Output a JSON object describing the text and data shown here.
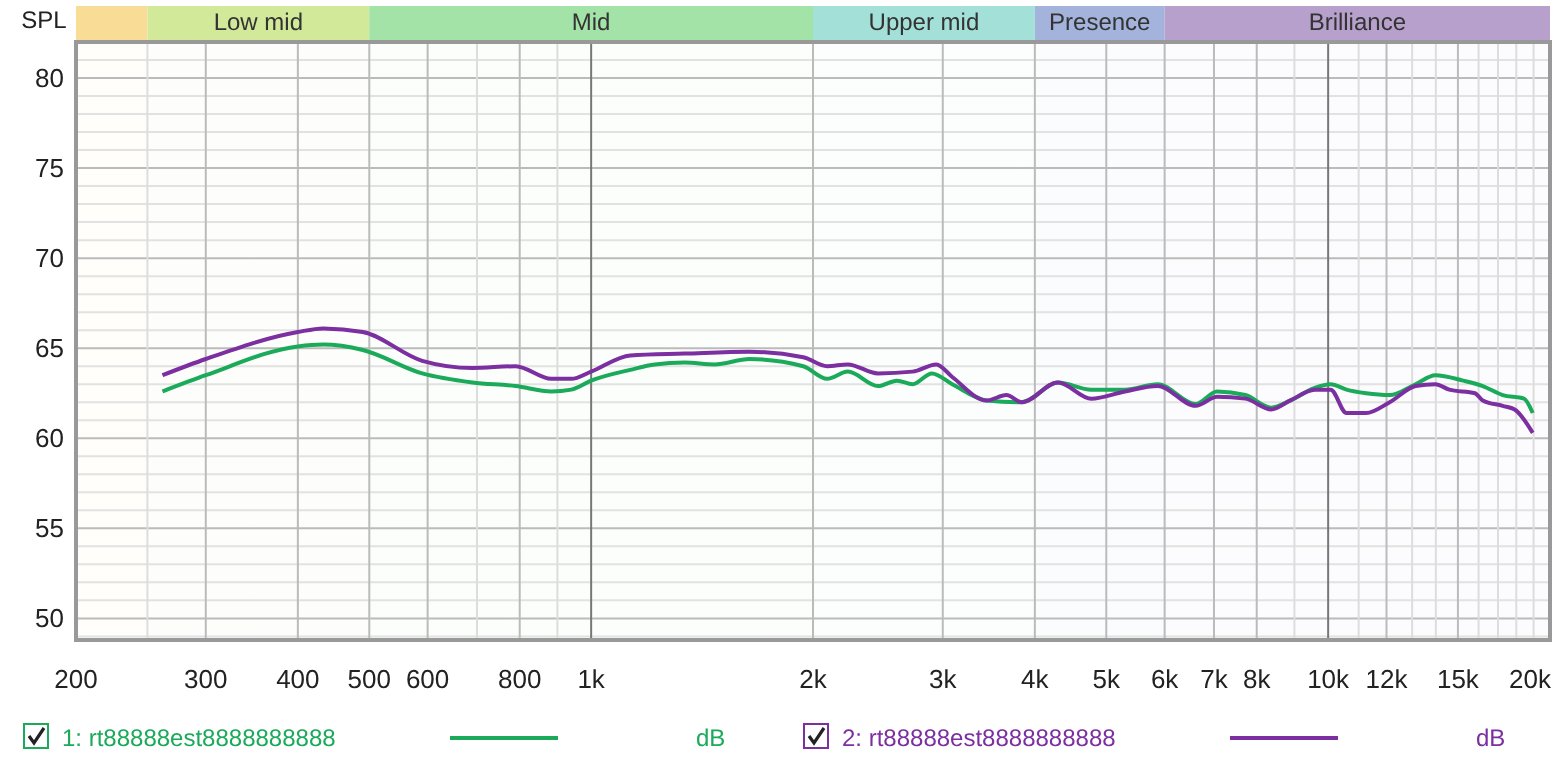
{
  "chart_data": {
    "type": "line",
    "ylabel": "SPL",
    "log": "x",
    "grid": true,
    "legend": "bottom",
    "line_style": "solid",
    "marker": "none",
    "xlim": [
      200,
      20000
    ],
    "ylim": [
      48.8,
      82
    ],
    "xticks": [
      200,
      {
        "value": 250,
        "label": null
      },
      300,
      400,
      500,
      600,
      {
        "value": 700,
        "label": null
      },
      800,
      {
        "value": 900,
        "label": null
      },
      {
        "value": 1000,
        "label": "1k"
      },
      {
        "value": 2000,
        "label": "2k"
      },
      {
        "value": 3000,
        "label": "3k"
      },
      {
        "value": 4000,
        "label": "4k"
      },
      {
        "value": 5000,
        "label": "5k"
      },
      {
        "value": 6000,
        "label": "6k"
      },
      {
        "value": 7000,
        "label": "7k"
      },
      {
        "value": 8000,
        "label": "8k"
      },
      {
        "value": 9000,
        "label": null
      },
      {
        "value": 10000,
        "label": "10k"
      },
      {
        "value": 11000,
        "label": null
      },
      {
        "value": 12000,
        "label": "12k"
      },
      {
        "value": 13000,
        "label": null
      },
      {
        "value": 14000,
        "label": null
      },
      {
        "value": 15000,
        "label": "15k"
      },
      {
        "value": 16000,
        "label": null
      },
      {
        "value": 17000,
        "label": null
      },
      {
        "value": 18000,
        "label": null
      },
      {
        "value": 19000,
        "label": null
      },
      {
        "value": 20000,
        "label": "20k"
      }
    ],
    "yticks": [
      {
        "value": 49,
        "label": null
      },
      50,
      {
        "value": 51,
        "label": null
      },
      {
        "value": 52,
        "label": null
      },
      {
        "value": 53,
        "label": null
      },
      {
        "value": 54,
        "label": null
      },
      55,
      {
        "value": 56,
        "label": null
      },
      {
        "value": 57,
        "label": null
      },
      {
        "value": 58,
        "label": null
      },
      {
        "value": 59,
        "label": null
      },
      60,
      {
        "value": 61,
        "label": null
      },
      {
        "value": 62,
        "label": null
      },
      {
        "value": 63,
        "label": null
      },
      {
        "value": 64,
        "label": null
      },
      65,
      {
        "value": 66,
        "label": null
      },
      {
        "value": 67,
        "label": null
      },
      {
        "value": 68,
        "label": null
      },
      {
        "value": 69,
        "label": null
      },
      70,
      {
        "value": 71,
        "label": null
      },
      {
        "value": 72,
        "label": null
      },
      {
        "value": 73,
        "label": null
      },
      {
        "value": 74,
        "label": null
      },
      75,
      {
        "value": 76,
        "label": null
      },
      {
        "value": 77,
        "label": null
      },
      {
        "value": 78,
        "label": null
      },
      {
        "value": 79,
        "label": null
      },
      80,
      {
        "value": 81,
        "label": null
      }
    ],
    "bands": [
      {
        "axis": "x",
        "from": 200,
        "to": 250,
        "label": null,
        "color": "#f9dc96"
      },
      {
        "axis": "x",
        "from": 250,
        "to": 500,
        "label": "Low mid",
        "color": "#d3e99a"
      },
      {
        "axis": "x",
        "from": 500,
        "to": 2000,
        "label": "Mid",
        "color": "#a3e3a8"
      },
      {
        "axis": "x",
        "from": 2000,
        "to": 4000,
        "label": "Upper mid",
        "color": "#a3e1d8"
      },
      {
        "axis": "x",
        "from": 4000,
        "to": 6000,
        "label": "Presence",
        "color": "#a3b3db"
      },
      {
        "axis": "x",
        "from": 6000,
        "to": 20000,
        "label": "Brilliance",
        "color": "#b7a0cc"
      }
    ],
    "annotations": [
      "dB",
      "dB"
    ],
    "series": [
      {
        "name": "1: rt88888est8888888888",
        "color": "#1aaa5a",
        "x": [
          262,
          300,
          400,
          433,
          490,
          590,
          690,
          790,
          883,
          940,
          1000,
          1130,
          1220,
          1340,
          1470,
          1640,
          1940,
          2090,
          2230,
          2450,
          2600,
          2730,
          2900,
          3090,
          3440,
          3840,
          4300,
          4770,
          5300,
          5870,
          6610,
          7070,
          7720,
          8370,
          8890,
          9590,
          10080,
          10590,
          11260,
          12120,
          13140,
          13980,
          15250,
          16210,
          17250,
          18440,
          18950
        ],
        "values": [
          62.6,
          63.5,
          65.1,
          65.2,
          64.9,
          63.6,
          63.1,
          62.9,
          62.6,
          62.7,
          63.2,
          63.8,
          64.1,
          64.2,
          64.1,
          64.4,
          64.0,
          63.3,
          63.7,
          62.9,
          63.2,
          63.0,
          63.6,
          63.0,
          62.1,
          62.0,
          63.1,
          62.7,
          62.7,
          63.0,
          61.9,
          62.6,
          62.4,
          61.7,
          62.1,
          62.8,
          63.0,
          62.7,
          62.5,
          62.4,
          63.0,
          63.5,
          63.2,
          62.9,
          62.4,
          62.2,
          61.4
        ]
      },
      {
        "name": "2: rt88888est8888888888",
        "color": "#7b2fa0",
        "x": [
          262,
          300,
          400,
          433,
          490,
          590,
          690,
          790,
          883,
          940,
          1000,
          1130,
          1340,
          1640,
          1940,
          2090,
          2230,
          2450,
          2730,
          2940,
          3090,
          3440,
          3660,
          3840,
          4300,
          4770,
          5300,
          5870,
          6610,
          7070,
          7720,
          8370,
          8890,
          9590,
          10080,
          10590,
          11260,
          12120,
          13140,
          13980,
          14600,
          15820,
          16210,
          17250,
          17910,
          18950
        ],
        "values": [
          63.5,
          64.4,
          65.9,
          66.1,
          65.9,
          64.3,
          63.9,
          64.0,
          63.3,
          63.3,
          63.7,
          64.6,
          64.7,
          64.8,
          64.5,
          64.0,
          64.1,
          63.6,
          63.7,
          64.1,
          63.4,
          62.1,
          62.4,
          62.0,
          63.1,
          62.2,
          62.6,
          62.9,
          61.8,
          62.3,
          62.2,
          61.6,
          62.1,
          62.7,
          62.7,
          61.4,
          61.4,
          62.0,
          62.9,
          63.0,
          62.7,
          62.5,
          62.1,
          61.8,
          61.6,
          60.3
        ]
      }
    ]
  }
}
